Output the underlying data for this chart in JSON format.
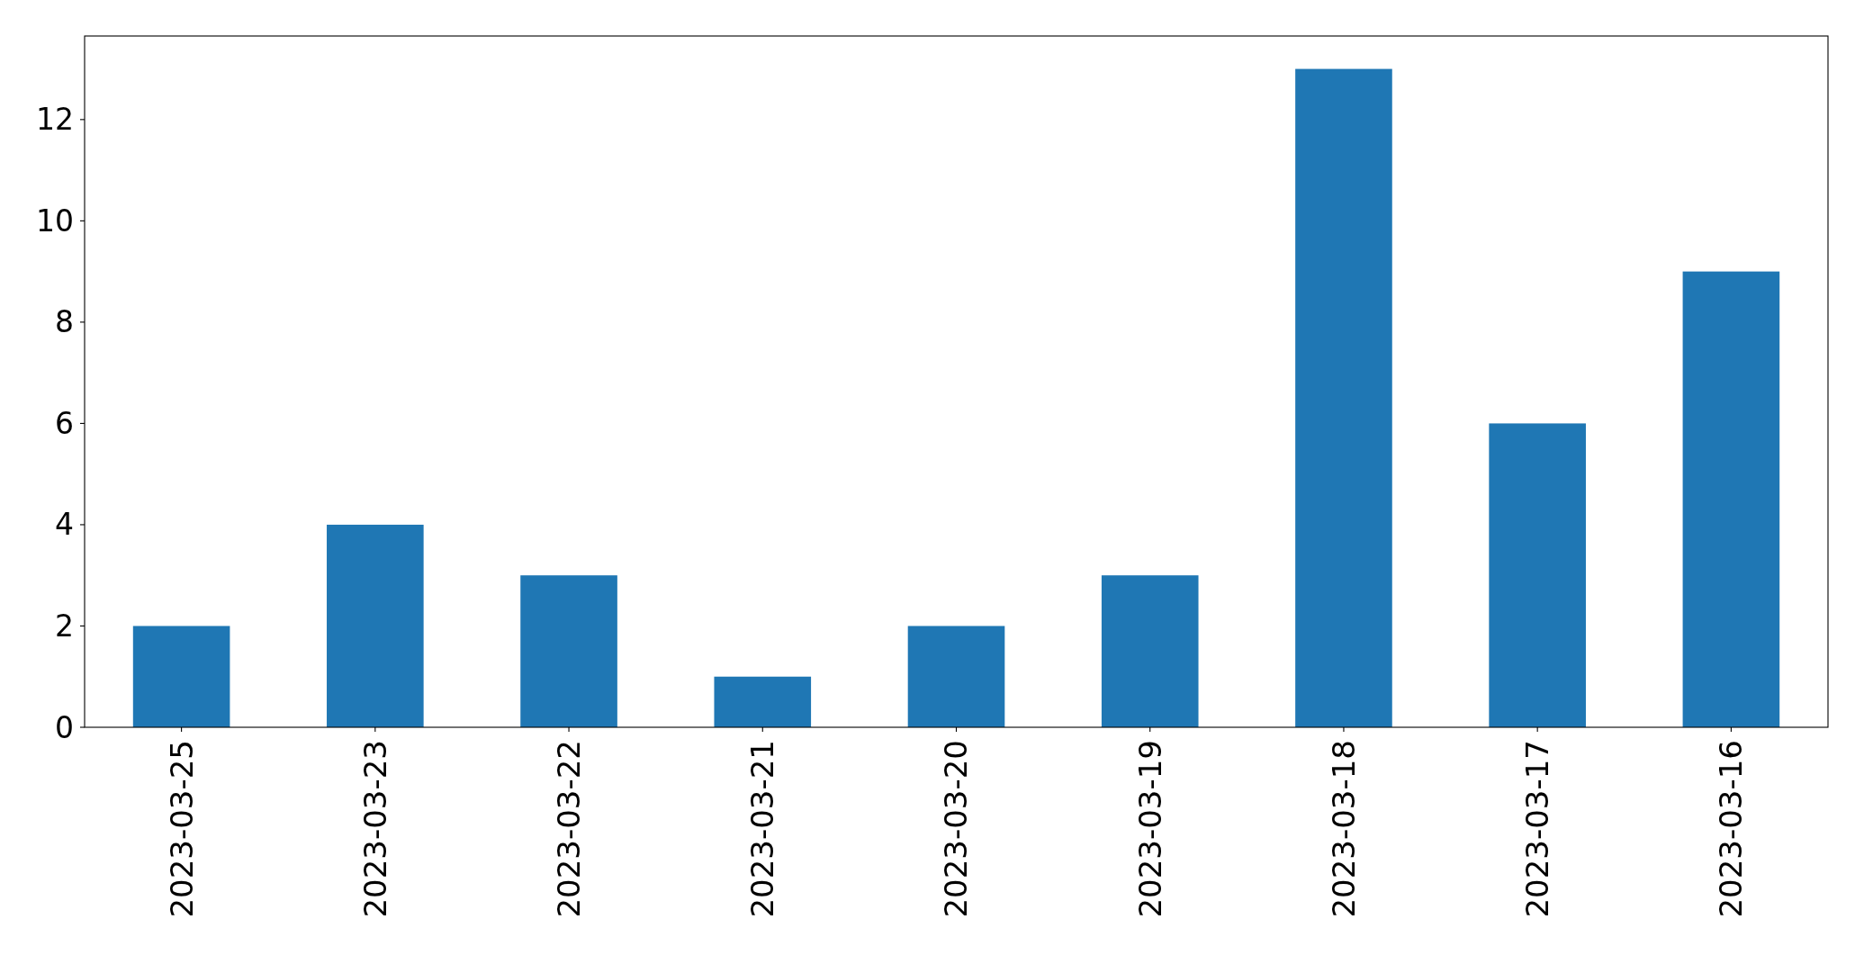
{
  "chart_data": {
    "type": "bar",
    "categories": [
      "2023-03-25",
      "2023-03-23",
      "2023-03-22",
      "2023-03-21",
      "2023-03-20",
      "2023-03-19",
      "2023-03-18",
      "2023-03-17",
      "2023-03-16"
    ],
    "values": [
      2,
      4,
      3,
      1,
      2,
      3,
      13,
      6,
      9
    ],
    "color": "#1f77b4",
    "ylim": [
      0,
      13.65
    ],
    "yticks": [
      0,
      2,
      4,
      6,
      8,
      10,
      12
    ]
  }
}
